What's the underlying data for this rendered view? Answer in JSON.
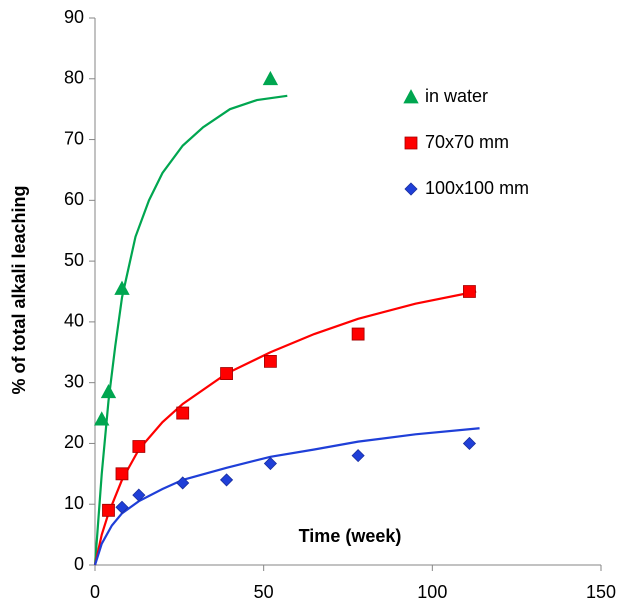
{
  "chart_data": {
    "type": "scatter",
    "x_label": "Time (week)",
    "y_label": "% of total alkali leaching",
    "xlim": [
      0,
      150
    ],
    "xticks": [
      0,
      50,
      100,
      150
    ],
    "ylim": [
      0,
      90
    ],
    "yticks": [
      0,
      10,
      20,
      30,
      40,
      50,
      60,
      70,
      80,
      90
    ],
    "grid": false,
    "legend": "upper right",
    "series": [
      {
        "name": "in water",
        "color": "#00a650",
        "marker": "triangle",
        "x": [
          2,
          4,
          8,
          52
        ],
        "values": [
          24,
          28.5,
          45.5,
          80
        ],
        "trend": {
          "x": [
            0,
            2,
            4,
            6,
            8,
            12,
            16,
            20,
            26,
            32,
            40,
            48,
            57
          ],
          "values": [
            0,
            15,
            27,
            36,
            44,
            54,
            60,
            64.5,
            69,
            72,
            75,
            76.5,
            77.2
          ]
        }
      },
      {
        "name": "70x70 mm",
        "color": "#ff0000",
        "marker": "square",
        "x": [
          4,
          8,
          13,
          26,
          39,
          52,
          78,
          111
        ],
        "values": [
          9,
          15,
          19.5,
          25,
          31.5,
          33.5,
          38,
          45
        ],
        "trend": {
          "x": [
            0,
            2,
            4,
            8,
            13,
            20,
            26,
            39,
            52,
            65,
            78,
            95,
            113
          ],
          "values": [
            0,
            5,
            8.5,
            14,
            19,
            23.5,
            26.5,
            31.5,
            35,
            38,
            40.5,
            43,
            45
          ]
        }
      },
      {
        "name": "100x100 mm",
        "color": "#1f3fd8",
        "marker": "diamond",
        "x": [
          8,
          13,
          26,
          39,
          52,
          78,
          111
        ],
        "values": [
          9.5,
          11.5,
          13.5,
          14,
          16.7,
          18,
          20
        ],
        "trend": {
          "x": [
            0,
            2,
            5,
            8,
            13,
            20,
            26,
            39,
            52,
            65,
            78,
            95,
            114
          ],
          "values": [
            0,
            3.5,
            6.5,
            8.5,
            10.5,
            12.5,
            14,
            16,
            17.8,
            19,
            20.3,
            21.5,
            22.5
          ]
        }
      }
    ]
  }
}
